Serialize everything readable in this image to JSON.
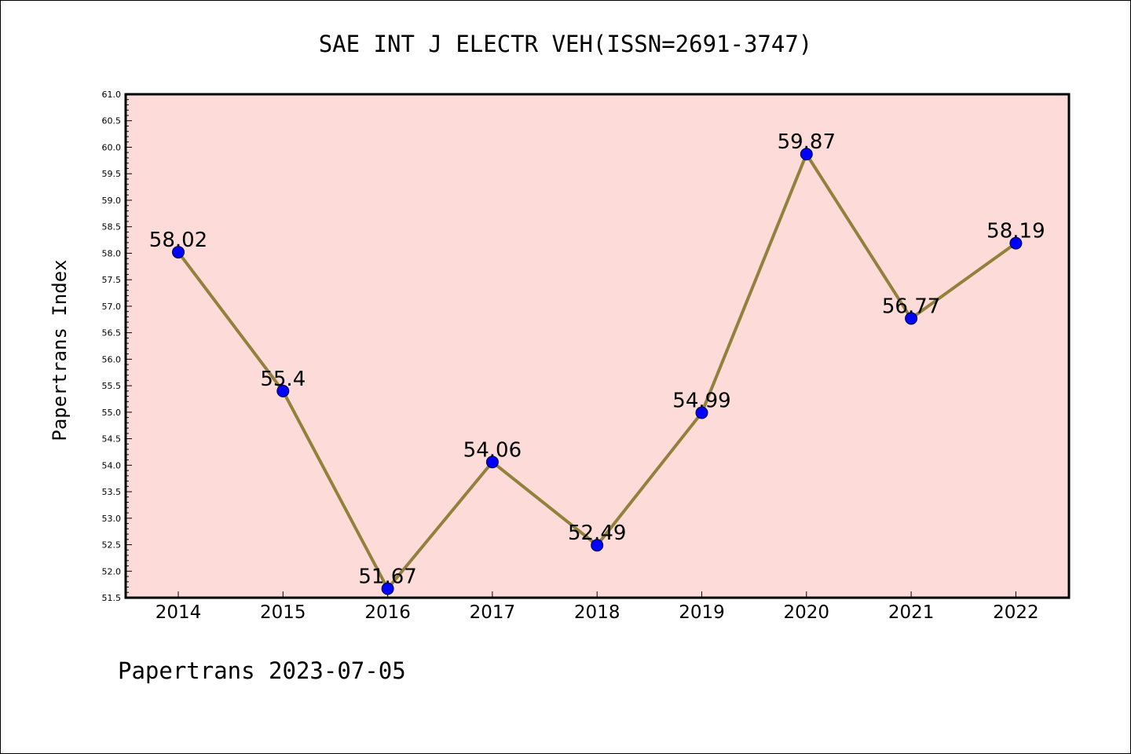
{
  "chart_data": {
    "type": "line",
    "title": "SAE INT J ELECTR VEH(ISSN=2691-3747)",
    "xlabel": "",
    "ylabel": "Papertrans Index",
    "footer": "Papertrans 2023-07-05",
    "categories": [
      "2014",
      "2015",
      "2016",
      "2017",
      "2018",
      "2019",
      "2020",
      "2021",
      "2022"
    ],
    "values": [
      58.02,
      55.4,
      51.67,
      54.06,
      52.49,
      54.99,
      59.87,
      56.77,
      58.19
    ],
    "value_labels": [
      "58.02",
      "55.4",
      "51.67",
      "54.06",
      "52.49",
      "54.99",
      "59.87",
      "56.77",
      "58.19"
    ],
    "ylim": [
      51.5,
      61.0
    ],
    "ytick_step": 0.5,
    "yticks": [
      "51.5",
      "52.0",
      "52.5",
      "53.0",
      "53.5",
      "54.0",
      "54.5",
      "55.0",
      "55.5",
      "56.0",
      "56.5",
      "57.0",
      "57.5",
      "58.0",
      "58.5",
      "59.0",
      "59.5",
      "60.0",
      "60.5",
      "61.0"
    ],
    "grid": false,
    "colors": {
      "plot_background": "#fddbd8",
      "line": "#92803d",
      "marker": "#0000ff",
      "axis": "#000000"
    }
  }
}
